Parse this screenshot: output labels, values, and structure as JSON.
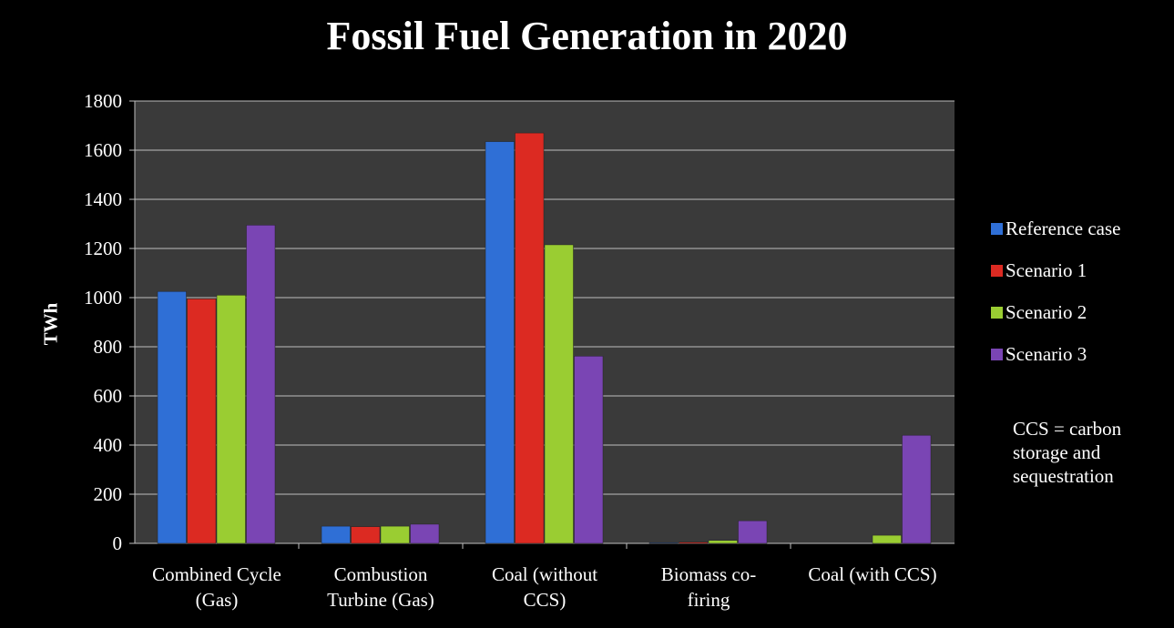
{
  "chart_data": {
    "type": "bar",
    "title": "Fossil Fuel Generation in 2020",
    "ylabel": "TWh",
    "xlabel": "",
    "ylim": [
      0,
      1800
    ],
    "yticks": [
      0,
      200,
      400,
      600,
      800,
      1000,
      1200,
      1400,
      1600,
      1800
    ],
    "grid": true,
    "legend_position": "right",
    "categories": [
      [
        "Combined Cycle",
        "(Gas)"
      ],
      [
        "Combustion",
        "Turbine (Gas)"
      ],
      [
        "Coal (without",
        "CCS)"
      ],
      [
        "Biomass co-",
        "firing"
      ],
      [
        "Coal (with CCS)"
      ]
    ],
    "series": [
      {
        "name": "Reference case",
        "color": "#2f6fd6",
        "values": [
          1025,
          70,
          1635,
          3,
          0
        ]
      },
      {
        "name": "Scenario 1",
        "color": "#dc2a22",
        "values": [
          995,
          68,
          1670,
          5,
          0
        ]
      },
      {
        "name": "Scenario 2",
        "color": "#9acd32",
        "values": [
          1010,
          70,
          1215,
          12,
          33
        ]
      },
      {
        "name": "Scenario 3",
        "color": "#7a45b4",
        "values": [
          1295,
          78,
          762,
          92,
          440
        ]
      }
    ],
    "note": [
      "CCS = carbon",
      "storage and",
      "sequestration"
    ]
  },
  "colors": {
    "background": "#000000",
    "plot_area": "#3a3a3a",
    "gridline": "#bfbfbf",
    "text": "#ffffff"
  }
}
